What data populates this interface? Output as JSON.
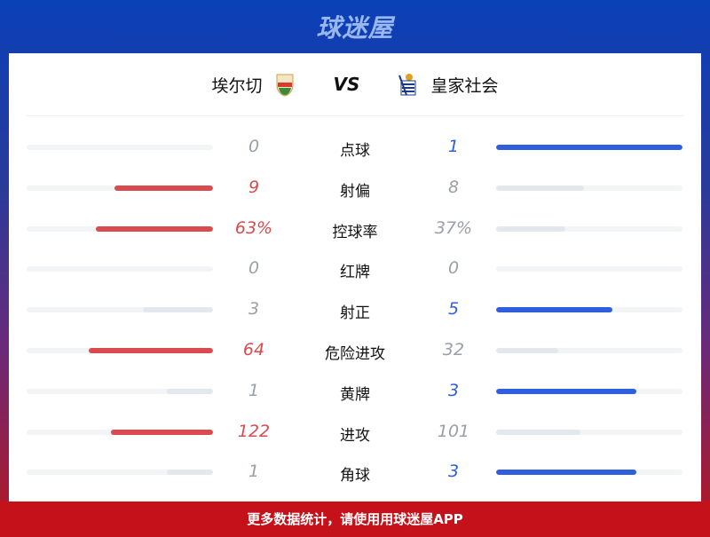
{
  "brand": "球迷屋",
  "match": {
    "home": "埃尔切",
    "vs": "VS",
    "away": "皇家社会"
  },
  "colors": {
    "home": "#d94b4f",
    "away": "#2f5fdc",
    "loser": "#e2e8ee",
    "neutral_text": "#9aa0a8"
  },
  "stats": [
    {
      "label": "点球",
      "home": "0",
      "away": "1",
      "hv": 0,
      "av": 1
    },
    {
      "label": "射偏",
      "home": "9",
      "away": "8",
      "hv": 9,
      "av": 8
    },
    {
      "label": "控球率",
      "home": "63%",
      "away": "37%",
      "hv": 63,
      "av": 37
    },
    {
      "label": "红牌",
      "home": "0",
      "away": "0",
      "hv": 0,
      "av": 0
    },
    {
      "label": "射正",
      "home": "3",
      "away": "5",
      "hv": 3,
      "av": 5
    },
    {
      "label": "危险进攻",
      "home": "64",
      "away": "32",
      "hv": 64,
      "av": 32
    },
    {
      "label": "黄牌",
      "home": "1",
      "away": "3",
      "hv": 1,
      "av": 3
    },
    {
      "label": "进攻",
      "home": "122",
      "away": "101",
      "hv": 122,
      "av": 101
    },
    {
      "label": "角球",
      "home": "1",
      "away": "3",
      "hv": 1,
      "av": 3
    }
  ],
  "footer": "更多数据统计，请使用用球迷屋APP"
}
